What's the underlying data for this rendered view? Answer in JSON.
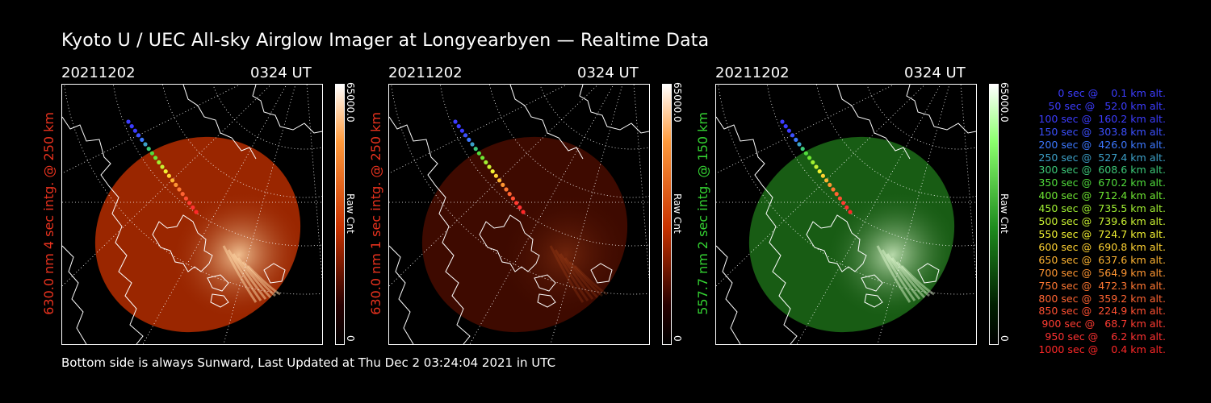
{
  "title": "Kyoto U / UEC All-sky Airglow Imager at Longyearbyen — Realtime Data",
  "panels": [
    {
      "date": "20211202",
      "time": "0324 UT",
      "side_label": "630.0 nm 4 sec intg. @ 250 km",
      "label_color": "#e8321e",
      "colorbar": {
        "max": "65000.0",
        "min": "0",
        "unit": "Raw Cnt",
        "colors": [
          "#ffffff",
          "#ff9a3c",
          "#c83200",
          "#280000"
        ]
      },
      "image": {
        "fill": "#9a2600",
        "glow": "#ffd9a8",
        "brightness": 1.0
      }
    },
    {
      "date": "20211202",
      "time": "0324 UT",
      "side_label": "630.0 nm 1 sec intg. @ 250 km",
      "label_color": "#e8321e",
      "colorbar": {
        "max": "65000.0",
        "min": "0",
        "unit": "Raw Cnt",
        "colors": [
          "#ffffff",
          "#ff9a3c",
          "#c83200",
          "#280000"
        ]
      },
      "image": {
        "fill": "#3e0a00",
        "glow": "#c0501f",
        "brightness": 0.45
      }
    },
    {
      "date": "20211202",
      "time": "0324 UT",
      "side_label": "557.7 nm 2 sec intg. @ 150 km",
      "label_color": "#34d232",
      "colorbar": {
        "max": "65000.0",
        "min": "0",
        "unit": "Raw Cnt",
        "colors": [
          "#ffffff",
          "#8cff6e",
          "#1e8c1e",
          "#001e00"
        ]
      },
      "image": {
        "fill": "#185c14",
        "glow": "#e8ffd8",
        "brightness": 0.9
      }
    }
  ],
  "legend": [
    {
      "text": "   0 sec @    0.1 km alt.",
      "color": "#3c3cff"
    },
    {
      "text": "  50 sec @   52.0 km alt.",
      "color": "#3c3cff"
    },
    {
      "text": " 100 sec @  160.2 km alt.",
      "color": "#3c3cff"
    },
    {
      "text": " 150 sec @  303.8 km alt.",
      "color": "#3c50ff"
    },
    {
      "text": " 200 sec @  426.0 km alt.",
      "color": "#3c78ff"
    },
    {
      "text": " 250 sec @  527.4 km alt.",
      "color": "#3ca0c8"
    },
    {
      "text": " 300 sec @  608.6 km alt.",
      "color": "#3cc878"
    },
    {
      "text": " 350 sec @  670.2 km alt.",
      "color": "#50dc3c"
    },
    {
      "text": " 400 sec @  712.4 km alt.",
      "color": "#6ee632"
    },
    {
      "text": " 450 sec @  735.5 km alt.",
      "color": "#a0f032"
    },
    {
      "text": " 500 sec @  739.6 km alt.",
      "color": "#c8f032"
    },
    {
      "text": " 550 sec @  724.7 km alt.",
      "color": "#f0f032"
    },
    {
      "text": " 600 sec @  690.8 km alt.",
      "color": "#ffd232"
    },
    {
      "text": " 650 sec @  637.6 km alt.",
      "color": "#ffb432"
    },
    {
      "text": " 700 sec @  564.9 km alt.",
      "color": "#ff9632"
    },
    {
      "text": " 750 sec @  472.3 km alt.",
      "color": "#ff7832"
    },
    {
      "text": " 800 sec @  359.2 km alt.",
      "color": "#ff6432"
    },
    {
      "text": " 850 sec @  224.9 km alt.",
      "color": "#ff5032"
    },
    {
      "text": " 900 sec @   68.7 km alt.",
      "color": "#ff3c32"
    },
    {
      "text": " 950 sec @    6.2 km alt.",
      "color": "#ff3232"
    },
    {
      "text": "1000 sec @    0.4 km alt.",
      "color": "#ff2828"
    }
  ],
  "footer": "Bottom side is always Sunward, Last Updated at Thu Dec  2 03:24:04 2021 in UTC"
}
